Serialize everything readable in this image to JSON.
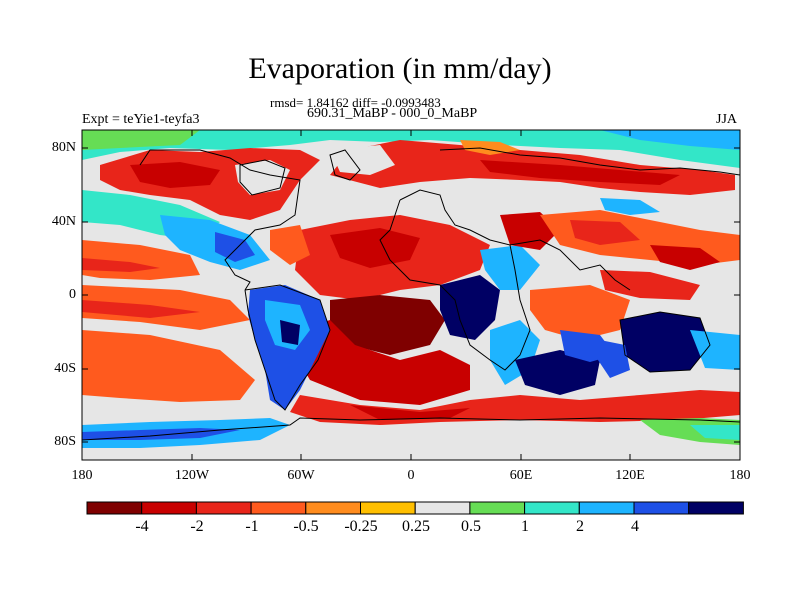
{
  "title": "Evaporation (in mm/day)",
  "stats_text": "rmsd= 1.84162 diff= -0.0993483",
  "period_text": "690.31_MaBP - 000_0_MaBP",
  "expt_text": "Expt = teYie1-teyfa3",
  "season": "JJA",
  "lat_labels": [
    "80N",
    "40N",
    "0",
    "40S",
    "80S"
  ],
  "lon_labels": [
    "180",
    "120W",
    "60W",
    "0",
    "60E",
    "120E",
    "180"
  ],
  "colorbar": {
    "labels": [
      "-4",
      "-2",
      "-1",
      "-0.5",
      "-0.25",
      "0.25",
      "0.5",
      "1",
      "2",
      "4"
    ],
    "colors": [
      "#7f0000",
      "#c80000",
      "#e8251a",
      "#ff5a1e",
      "#ff8c1e",
      "#ffbf00",
      "#e6e6e6",
      "#66dd55",
      "#33e6c8",
      "#1eb4ff",
      "#1e50e6",
      "#000064"
    ]
  }
}
